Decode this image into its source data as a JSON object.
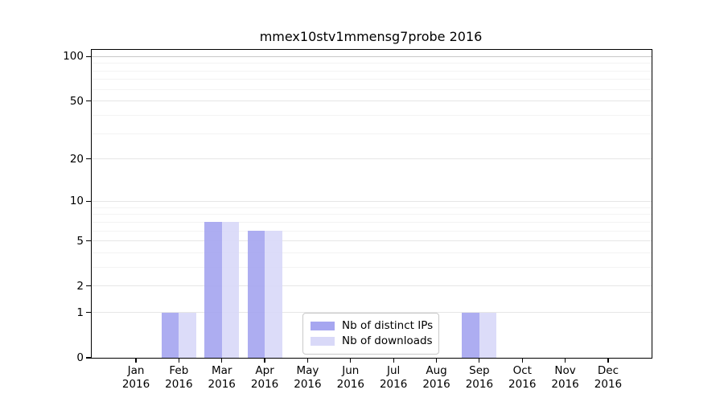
{
  "chart_data": {
    "type": "bar",
    "title": "mmex10stv1mmensg7probe 2016",
    "categories": [
      "Jan",
      "Feb",
      "Mar",
      "Apr",
      "May",
      "Jun",
      "Jul",
      "Aug",
      "Sep",
      "Oct",
      "Nov",
      "Dec"
    ],
    "category_year": "2016",
    "series": [
      {
        "name": "Nb of distinct IPs",
        "values": [
          0,
          1,
          7,
          6,
          0,
          0,
          0,
          0,
          1,
          0,
          0,
          0
        ],
        "color": "#a6a6f0"
      },
      {
        "name": "Nb of downloads",
        "values": [
          0,
          1,
          7,
          6,
          0,
          0,
          0,
          0,
          1,
          0,
          0,
          0
        ],
        "color": "#d9d9f8"
      }
    ],
    "xlabel": "",
    "ylabel": "",
    "y_scale": "log1p",
    "ylim": [
      0,
      111
    ],
    "y_major_ticks": [
      0,
      1,
      2,
      5,
      10,
      20,
      50,
      100
    ],
    "y_minor_gridlines": [
      3,
      4,
      6,
      7,
      8,
      9,
      30,
      40,
      60,
      70,
      80,
      90
    ],
    "grid": "on",
    "legend_position": "lower-center-inside",
    "colors": {
      "bar_dark": "#a6a6f0",
      "bar_light": "#d9d9f8",
      "grid_major": "#e6e6e6",
      "grid_top": "#c8c8c8",
      "grid_minor": "#f3f3f3",
      "spine": "#000000"
    }
  }
}
